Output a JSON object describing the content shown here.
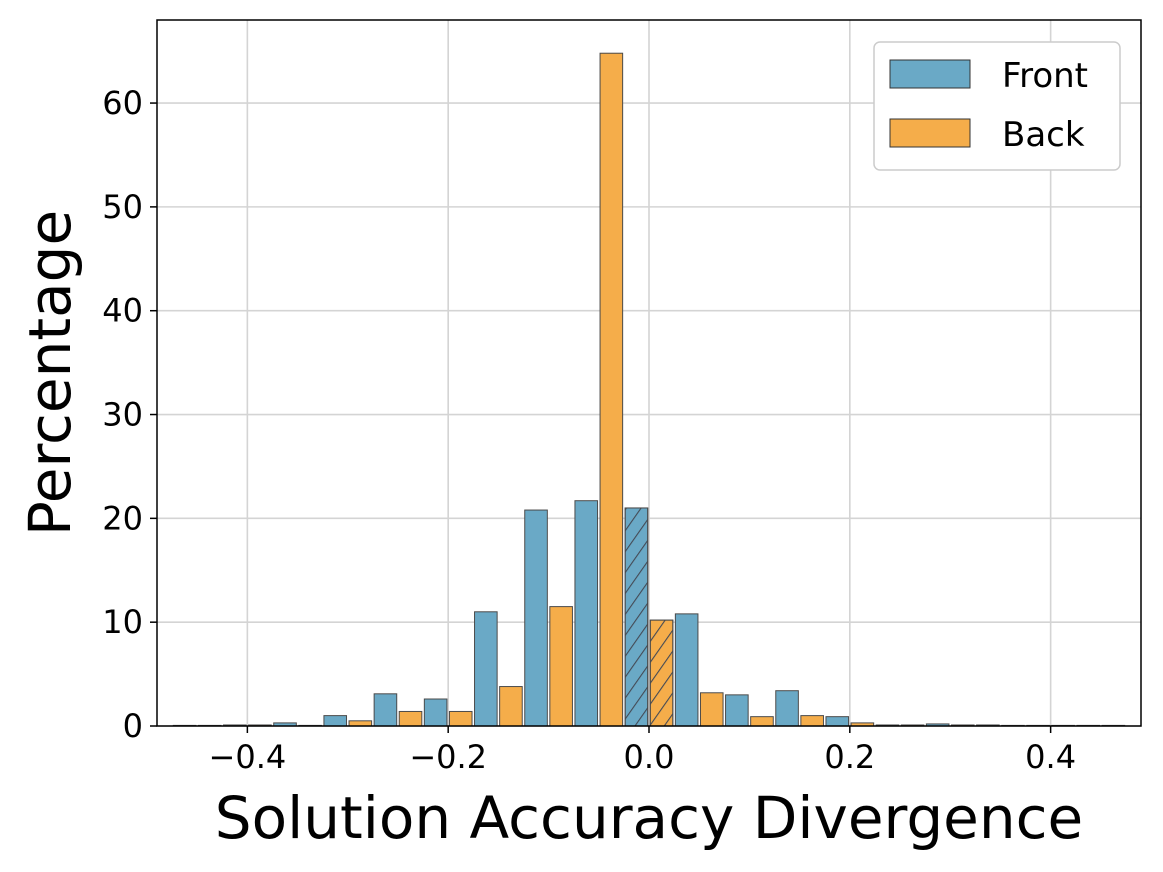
{
  "chart_data": {
    "type": "bar",
    "title": "",
    "xlabel": "Solution Accuracy Divergence",
    "ylabel": "Percentage",
    "xlim": [
      -0.49,
      0.49
    ],
    "ylim": [
      0,
      68
    ],
    "x_ticks": [
      -0.4,
      -0.2,
      0.0,
      0.2,
      0.4
    ],
    "x_tick_labels": [
      "−0.4",
      "−0.2",
      "0.0",
      "0.2",
      "0.4"
    ],
    "y_ticks": [
      0,
      10,
      20,
      30,
      40,
      50,
      60
    ],
    "y_tick_labels": [
      "0",
      "10",
      "20",
      "30",
      "40",
      "50",
      "60"
    ],
    "grid": true,
    "legend_position": "top-right",
    "x": [
      -0.45,
      -0.4,
      -0.35,
      -0.3,
      -0.25,
      -0.2,
      -0.15,
      -0.1,
      -0.05,
      0.0,
      0.05,
      0.1,
      0.15,
      0.2,
      0.25,
      0.3,
      0.35,
      0.4,
      0.45
    ],
    "bin_width": 0.05,
    "highlight_x": 0.0,
    "series": [
      {
        "name": "Front",
        "color": "#6aa9c6",
        "values": [
          0.0,
          0.1,
          0.3,
          1.0,
          3.1,
          2.6,
          11.0,
          20.8,
          21.7,
          21.0,
          10.8,
          3.0,
          3.4,
          0.9,
          0.1,
          0.2,
          0.1,
          0.0,
          0.0
        ]
      },
      {
        "name": "Back",
        "color": "#f5ad4a",
        "values": [
          0.0,
          0.1,
          0.0,
          0.5,
          1.4,
          1.4,
          3.8,
          11.5,
          64.8,
          10.2,
          3.2,
          0.9,
          1.0,
          0.3,
          0.1,
          0.1,
          0.0,
          0.0,
          0.0
        ]
      }
    ]
  }
}
